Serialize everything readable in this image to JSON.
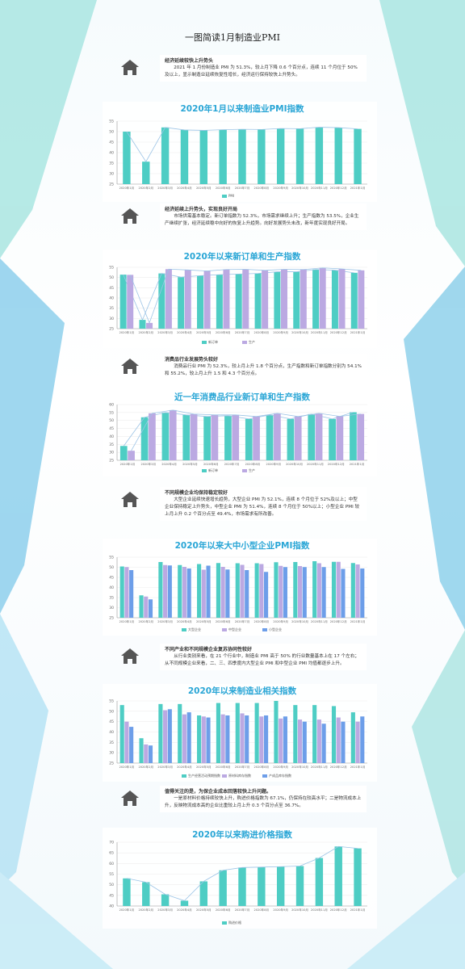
{
  "page_title": "一图简读1月制造业PMI",
  "sections": [
    {
      "heading": "经济延续较快上升势头",
      "text": "2021 年 1 月份制造业 PMI 为 51.3%，较上月下降 0.6 个百分点，连续 11 个月位于 50%及以上，显示制造业延续恢复性增长，经济运行保持较快上升势头。"
    },
    {
      "heading": "经济延续上升势头，实现良好开局",
      "text": "市场供需基本稳定。新订单指数为 52.3%，市场需求继续上升；生产指数为 53.5%，企业生产继续扩张，经济延续稳中向好的恢复上升趋势。向好发展势头未改，新年度实现良好开局。"
    },
    {
      "heading": "消费品行业发展势头较好",
      "text": "消费品行业 PMI 为 52.3%，较上月上升 1.8 个百分点，生产指数和新订单指数分别为 54.1%和 55.2%，较上月上升 1.5 和 4.3 个百分点。"
    },
    {
      "heading": "不同规模企业均保持稳定较好",
      "text": "大型企业延续快速增长趋势，大型企业 PMI 为 52.1%，连续 8 个月位于 52%及以上；中型企业保持稳定上升势头，中型企业 PMI 为 51.4%，连续 8 个月位于 50%以上；小型企业 PMI 较上月上升 0.2 个百分点至 49.4%，市场需求有所改善。"
    },
    {
      "heading": "不同产业和不同规模企业复苏协同性较好",
      "text": "从行业类别来看，在 21 个行业中，制造业 PMI 高于 50% 的行业数量基本上在 17 个左右；从不同规模企业来看，二、三、四季度内大型企业 PMI 和中型企业 PMI 均值都逐步上升。"
    },
    {
      "heading": "值得关注的是，为保企业成本回落较快上升问题。",
      "text": "一是原材料价格持续较快上升，购进价格指数为 67.1%，仍保持在较高水平；二是物流成本上升，反映物流成本高的企业比重较上月上升 0.3 个百分点至 36.7%。"
    }
  ],
  "chart_data": [
    {
      "type": "bar",
      "title": "2020年1月以来制造业PMI指数",
      "line": true,
      "categories": [
        "2020年1月",
        "2020年2月",
        "2020年3月",
        "2020年4月",
        "2020年5月",
        "2020年6月",
        "2020年7月",
        "2020年8月",
        "2020年9月",
        "2020年10月",
        "2020年11月",
        "2020年12月",
        "2021年1月"
      ],
      "series": [
        {
          "name": "PMI",
          "color": "#4ecdc4",
          "values": [
            50.0,
            35.7,
            52.0,
            50.8,
            50.6,
            50.9,
            51.1,
            51.0,
            51.5,
            51.4,
            52.1,
            51.9,
            51.3
          ]
        }
      ],
      "ylim": [
        25,
        55
      ],
      "yticks": [
        25,
        30,
        35,
        40,
        45,
        50,
        55
      ]
    },
    {
      "type": "bar",
      "title": "2020年以来新订单和生产指数",
      "line": true,
      "categories": [
        "2020年1月",
        "2020年2月",
        "2020年3月",
        "2020年4月",
        "2020年5月",
        "2020年6月",
        "2020年7月",
        "2020年8月",
        "2020年9月",
        "2020年10月",
        "2020年11月",
        "2020年12月",
        "2021年1月"
      ],
      "series": [
        {
          "name": "新订单",
          "color": "#4ecdc4",
          "values": [
            51.4,
            29.3,
            52.0,
            50.2,
            50.9,
            51.4,
            51.7,
            52.0,
            52.8,
            52.8,
            53.9,
            53.6,
            52.3
          ]
        },
        {
          "name": "生产",
          "color": "#bba9e2",
          "values": [
            51.3,
            27.8,
            54.1,
            53.7,
            53.2,
            53.9,
            54.0,
            53.5,
            54.0,
            53.9,
            54.7,
            54.2,
            53.5
          ]
        }
      ],
      "ylim": [
        25,
        55
      ],
      "yticks": [
        25,
        30,
        35,
        40,
        45,
        50,
        55
      ]
    },
    {
      "type": "bar",
      "title": "近一年消费品行业新订单和生产指数",
      "line": true,
      "categories": [
        "2020年1月",
        "2020年3月",
        "2020年4月",
        "2020年5月",
        "2020年6月",
        "2020年7月",
        "2020年8月",
        "2020年9月",
        "2020年10月",
        "2020年11月",
        "2020年12月",
        "2021年1月"
      ],
      "series": [
        {
          "name": "新订单",
          "color": "#4ecdc4",
          "values": [
            34,
            52,
            55,
            53.5,
            52.5,
            53,
            51,
            53.5,
            51,
            54,
            51,
            55.2
          ]
        },
        {
          "name": "生产",
          "color": "#bba9e2",
          "values": [
            31,
            54.5,
            56.5,
            54,
            53.5,
            53.5,
            52.5,
            54.5,
            52.5,
            54.5,
            52.6,
            54.1
          ]
        }
      ],
      "ylim": [
        25,
        60
      ],
      "yticks": [
        25,
        30,
        35,
        40,
        45,
        50,
        55,
        60
      ]
    },
    {
      "type": "bar",
      "title": "2020年以来大中小型企业PMI指数",
      "line": false,
      "categories": [
        "2020年1月",
        "2020年2月",
        "2020年3月",
        "2020年4月",
        "2020年5月",
        "2020年6月",
        "2020年7月",
        "2020年8月",
        "2020年9月",
        "2020年10月",
        "2020年11月",
        "2020年12月",
        "2021年1月"
      ],
      "series": [
        {
          "name": "大型企业",
          "color": "#4ecdc4",
          "values": [
            50.4,
            36.1,
            52.6,
            51.1,
            51.6,
            52.1,
            52.0,
            52.0,
            52.5,
            52.6,
            53.0,
            52.7,
            52.1
          ]
        },
        {
          "name": "中型企业",
          "color": "#bba9e2",
          "values": [
            50.1,
            35.5,
            51.1,
            50.2,
            48.8,
            50.2,
            51.2,
            51.6,
            50.7,
            50.6,
            52.0,
            52.7,
            51.4
          ]
        },
        {
          "name": "小型企业",
          "color": "#6d9ee9",
          "values": [
            48.6,
            34.1,
            50.9,
            49.4,
            50.8,
            48.9,
            48.6,
            47.7,
            50.1,
            50.1,
            50.1,
            49.2,
            49.4
          ]
        }
      ],
      "ylim": [
        25,
        55
      ],
      "yticks": [
        25,
        30,
        35,
        40,
        45,
        50,
        55
      ]
    },
    {
      "type": "bar",
      "title": "2020年以来制造业相关指数",
      "line": false,
      "categories": [
        "2020年1月",
        "2020年2月",
        "2020年3月",
        "2020年4月",
        "2020年5月",
        "2020年6月",
        "2020年7月",
        "2020年8月",
        "2020年9月",
        "2020年10月",
        "2020年11月",
        "2020年12月",
        "2021年1月"
      ],
      "series": [
        {
          "name": "生产经营活动预期指数",
          "color": "#4ecdc4",
          "values": [
            53,
            37,
            53.5,
            53.5,
            48,
            54,
            54,
            54,
            55,
            53,
            53,
            52.5,
            49.5
          ]
        },
        {
          "name": "原材料库存指数",
          "color": "#bba9e2",
          "values": [
            45,
            34,
            50.5,
            48.5,
            47.5,
            48.5,
            49,
            47.5,
            46.5,
            46,
            46,
            47,
            45
          ]
        },
        {
          "name": "产成品库存指数",
          "color": "#6d9ee9",
          "values": [
            42.5,
            33.5,
            51,
            49.5,
            47,
            48,
            48,
            48,
            47.5,
            45,
            44,
            45,
            47.5
          ]
        }
      ],
      "ylim": [
        25,
        55
      ],
      "yticks": [
        25,
        30,
        35,
        40,
        45,
        50,
        55
      ]
    },
    {
      "type": "bar",
      "title": "2020年以来购进价格指数",
      "line": true,
      "categories": [
        "2020年1月",
        "2020年2月",
        "2020年3月",
        "2020年4月",
        "2020年5月",
        "2020年6月",
        "2020年7月",
        "2020年8月",
        "2020年9月",
        "2020年10月",
        "2020年11月",
        "2020年12月",
        "2021年1月"
      ],
      "series": [
        {
          "name": "购进价格",
          "color": "#4ecdc4",
          "values": [
            53.0,
            51.2,
            45.5,
            42.5,
            51.6,
            56.8,
            58.1,
            58.3,
            58.5,
            58.8,
            62.6,
            68.0,
            67.1
          ]
        }
      ],
      "ylim": [
        40,
        70
      ],
      "yticks": [
        40,
        45,
        50,
        55,
        60,
        65,
        70
      ]
    }
  ]
}
